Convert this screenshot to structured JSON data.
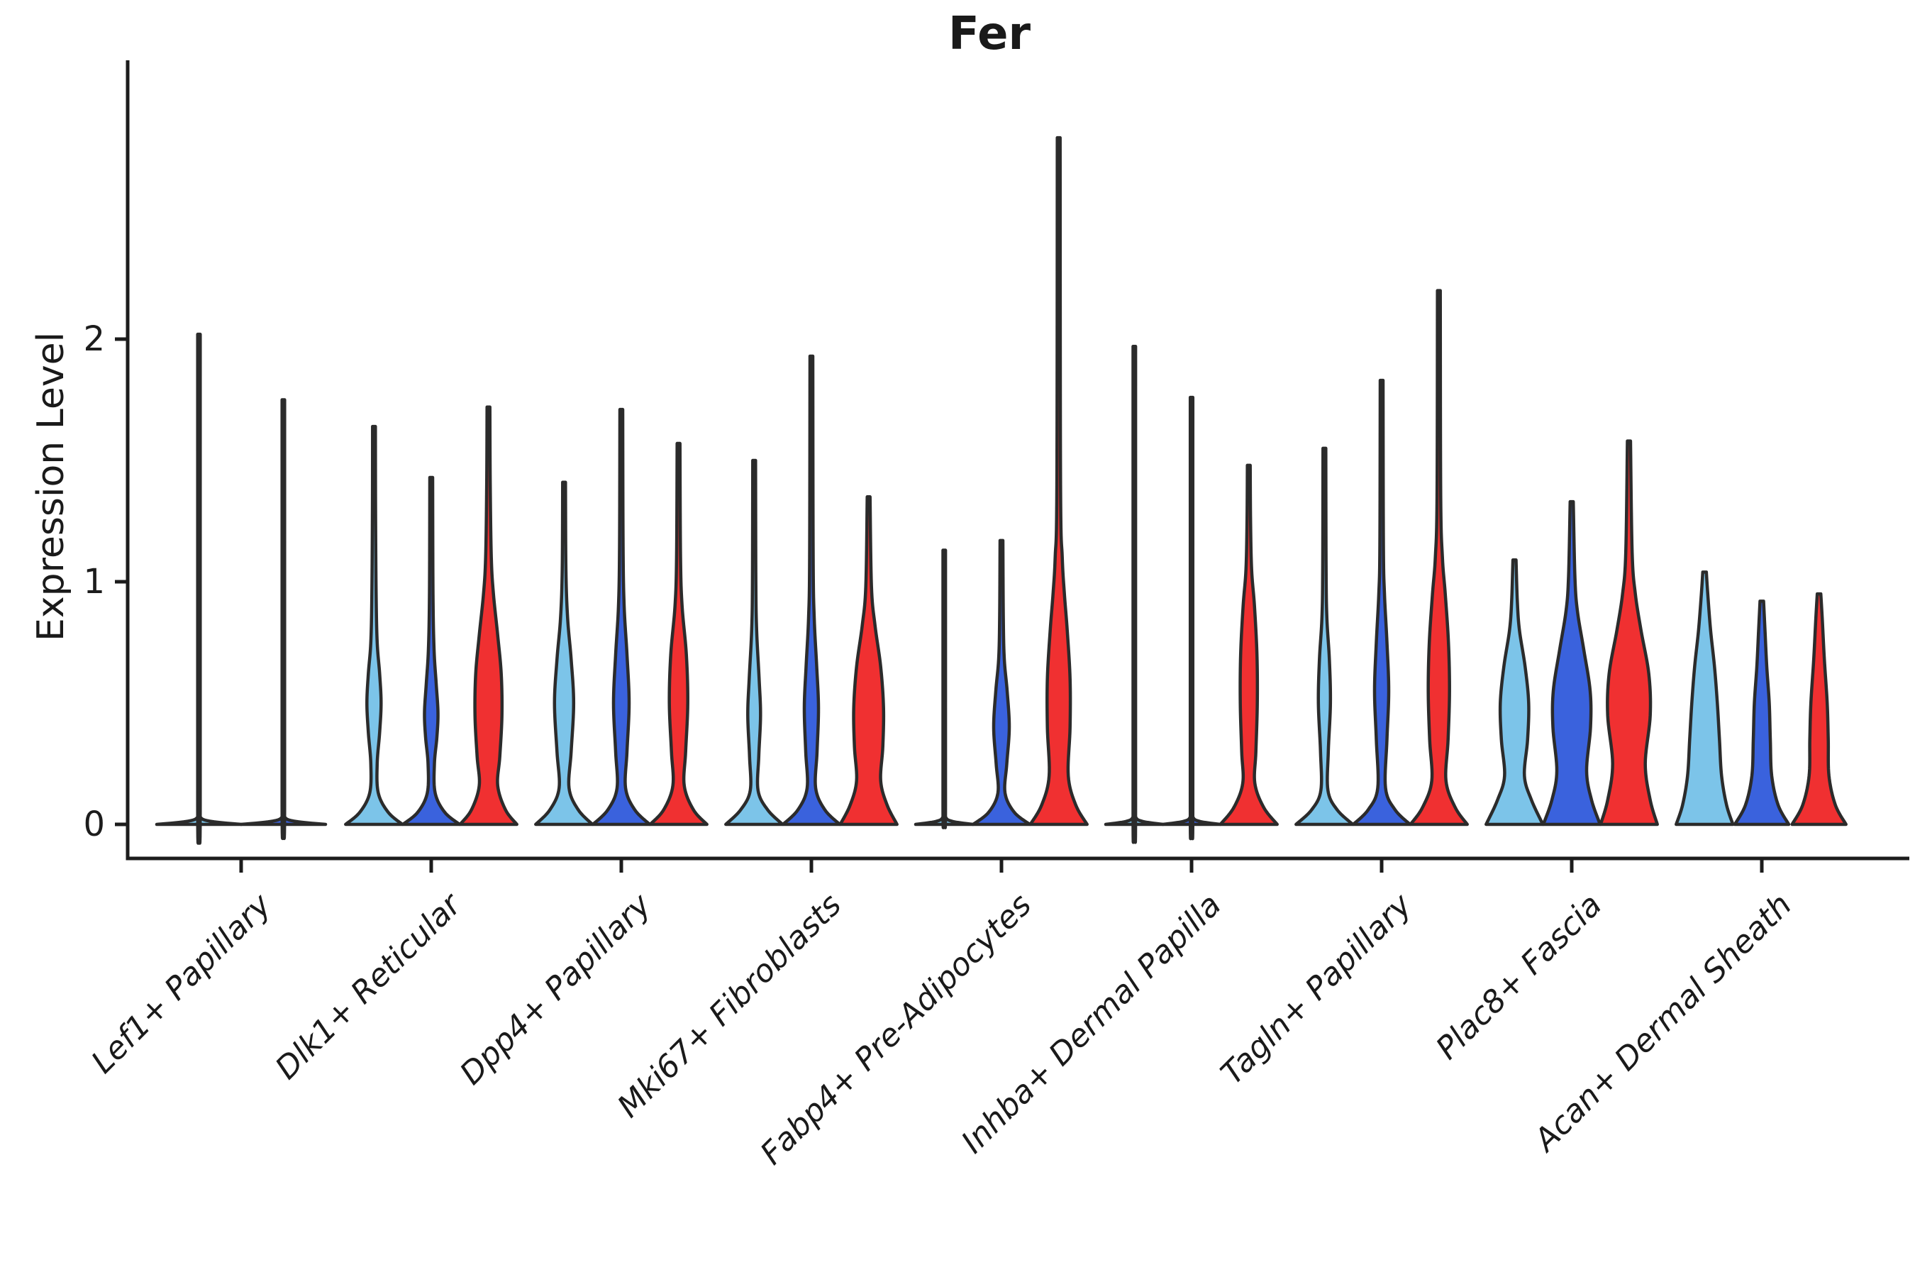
{
  "title": "Fer",
  "axes": {
    "ylabel": "Expression Level",
    "yticks": [
      0,
      1,
      2
    ],
    "ylim": [
      0,
      2.9
    ],
    "grid": false,
    "legend": "none"
  },
  "colors": {
    "lightblue": "#7CC4E9",
    "darkblue": "#3A62DD",
    "red": "#F03031",
    "outline": "#2B2B2B",
    "axis": "#1C1C1C"
  },
  "chart_data": {
    "type": "violin",
    "title": "Fer",
    "ylabel": "Expression Level",
    "categories": [
      "Lef1+ Papillary",
      "Dlk1+ Reticular",
      "Dpp4+ Papillary",
      "Mki67+ Fibroblasts",
      "Fabp4+ Pre-Adipocytes",
      "Inhba+ Dermal Papilla",
      "Tagln+ Papillary",
      "Plac8+ Fascia",
      "Acan+ Dermal Sheath"
    ],
    "profile_units": "[expression_value, half_width_px]",
    "groups": [
      {
        "label": "Lef1+ Papillary",
        "violins": [
          {
            "color": "lightblue",
            "max": 2.02,
            "flat": true
          },
          {
            "color": "darkblue",
            "max": 1.75,
            "flat": true
          }
        ]
      },
      {
        "label": "Dlk1+ Reticular",
        "violins": [
          {
            "color": "lightblue",
            "max": 1.64,
            "flat": false,
            "profile": [
              [
                0,
                40
              ],
              [
                0.05,
                20
              ],
              [
                0.13,
                6
              ],
              [
                0.25,
                4.5
              ],
              [
                0.38,
                8
              ],
              [
                0.5,
                10
              ],
              [
                0.62,
                8
              ],
              [
                0.75,
                4.5
              ],
              [
                0.95,
                3
              ],
              [
                1.3,
                2.2
              ],
              [
                1.64,
                2
              ]
            ]
          },
          {
            "color": "darkblue",
            "max": 1.43,
            "flat": false,
            "profile": [
              [
                0,
                40
              ],
              [
                0.05,
                19
              ],
              [
                0.13,
                5.5
              ],
              [
                0.25,
                4.5
              ],
              [
                0.36,
                8
              ],
              [
                0.46,
                9.5
              ],
              [
                0.58,
                7
              ],
              [
                0.72,
                4
              ],
              [
                0.95,
                2.5
              ],
              [
                1.43,
                2
              ]
            ]
          },
          {
            "color": "red",
            "max": 1.72,
            "flat": false,
            "profile": [
              [
                0,
                40
              ],
              [
                0.06,
                24
              ],
              [
                0.16,
                13
              ],
              [
                0.28,
                16
              ],
              [
                0.45,
                19
              ],
              [
                0.62,
                18
              ],
              [
                0.78,
                13
              ],
              [
                0.95,
                7
              ],
              [
                1.1,
                4
              ],
              [
                1.4,
                2.5
              ],
              [
                1.72,
                2
              ]
            ]
          }
        ]
      },
      {
        "label": "Dpp4+ Papillary",
        "violins": [
          {
            "color": "lightblue",
            "max": 1.41,
            "flat": false,
            "profile": [
              [
                0,
                40
              ],
              [
                0.06,
                20
              ],
              [
                0.15,
                7
              ],
              [
                0.3,
                10
              ],
              [
                0.5,
                13.5
              ],
              [
                0.68,
                10
              ],
              [
                0.85,
                5
              ],
              [
                1.05,
                2.6
              ],
              [
                1.41,
                2
              ]
            ]
          },
          {
            "color": "darkblue",
            "max": 1.71,
            "flat": false,
            "profile": [
              [
                0,
                40
              ],
              [
                0.06,
                19
              ],
              [
                0.15,
                6
              ],
              [
                0.3,
                8
              ],
              [
                0.5,
                11
              ],
              [
                0.7,
                8
              ],
              [
                0.9,
                4
              ],
              [
                1.15,
                2.5
              ],
              [
                1.71,
                2
              ]
            ]
          },
          {
            "color": "red",
            "max": 1.57,
            "flat": false,
            "profile": [
              [
                0,
                40
              ],
              [
                0.06,
                21
              ],
              [
                0.16,
                8
              ],
              [
                0.3,
                10
              ],
              [
                0.5,
                13
              ],
              [
                0.7,
                11
              ],
              [
                0.9,
                5
              ],
              [
                1.1,
                2.8
              ],
              [
                1.57,
                2
              ]
            ]
          }
        ]
      },
      {
        "label": "Mki67+ Fibroblasts",
        "violins": [
          {
            "color": "lightblue",
            "max": 1.5,
            "flat": false,
            "profile": [
              [
                0,
                40
              ],
              [
                0.06,
                19
              ],
              [
                0.14,
                5.5
              ],
              [
                0.28,
                6.5
              ],
              [
                0.45,
                9
              ],
              [
                0.6,
                7
              ],
              [
                0.8,
                3.5
              ],
              [
                1.0,
                2.4
              ],
              [
                1.5,
                2
              ]
            ]
          },
          {
            "color": "darkblue",
            "max": 1.93,
            "flat": false,
            "profile": [
              [
                0,
                40
              ],
              [
                0.06,
                19
              ],
              [
                0.15,
                6
              ],
              [
                0.3,
                8
              ],
              [
                0.48,
                10
              ],
              [
                0.65,
                7.5
              ],
              [
                0.85,
                4
              ],
              [
                1.1,
                2.5
              ],
              [
                1.93,
                2
              ]
            ]
          },
          {
            "color": "red",
            "max": 1.35,
            "flat": false,
            "profile": [
              [
                0,
                40
              ],
              [
                0.08,
                26
              ],
              [
                0.18,
                17
              ],
              [
                0.32,
                20
              ],
              [
                0.48,
                21
              ],
              [
                0.65,
                17
              ],
              [
                0.82,
                9
              ],
              [
                0.98,
                4
              ],
              [
                1.35,
                2
              ]
            ]
          }
        ]
      },
      {
        "label": "Fabp4+ Pre-Adipocytes",
        "violins": [
          {
            "color": "lightblue",
            "max": 1.13,
            "flat": true
          },
          {
            "color": "darkblue",
            "max": 1.17,
            "flat": false,
            "profile": [
              [
                0,
                40
              ],
              [
                0.05,
                18
              ],
              [
                0.13,
                5
              ],
              [
                0.25,
                7.5
              ],
              [
                0.4,
                11
              ],
              [
                0.55,
                8
              ],
              [
                0.68,
                4
              ],
              [
                0.85,
                2.6
              ],
              [
                1.17,
                2
              ]
            ]
          },
          {
            "color": "red",
            "max": 2.83,
            "flat": false,
            "profile": [
              [
                0,
                40
              ],
              [
                0.08,
                24
              ],
              [
                0.2,
                13.5
              ],
              [
                0.4,
                16
              ],
              [
                0.6,
                16
              ],
              [
                0.8,
                12
              ],
              [
                0.95,
                8
              ],
              [
                1.1,
                5
              ],
              [
                1.4,
                2.6
              ],
              [
                2.83,
                2
              ]
            ]
          }
        ]
      },
      {
        "label": "Inhba+ Dermal Papilla",
        "violins": [
          {
            "color": "lightblue",
            "max": 1.97,
            "flat": true
          },
          {
            "color": "darkblue",
            "max": 1.76,
            "flat": true
          },
          {
            "color": "red",
            "max": 1.48,
            "flat": false,
            "profile": [
              [
                0,
                40
              ],
              [
                0.07,
                21
              ],
              [
                0.17,
                8.5
              ],
              [
                0.3,
                10
              ],
              [
                0.5,
                12
              ],
              [
                0.7,
                11.5
              ],
              [
                0.9,
                8
              ],
              [
                1.05,
                4
              ],
              [
                1.25,
                2.5
              ],
              [
                1.48,
                2
              ]
            ]
          }
        ]
      },
      {
        "label": "Tagln+ Papillary",
        "violins": [
          {
            "color": "lightblue",
            "max": 1.55,
            "flat": false,
            "profile": [
              [
                0,
                40
              ],
              [
                0.06,
                18
              ],
              [
                0.14,
                5
              ],
              [
                0.3,
                5.5
              ],
              [
                0.5,
                8.5
              ],
              [
                0.68,
                7
              ],
              [
                0.85,
                3.5
              ],
              [
                1.05,
                2.4
              ],
              [
                1.55,
                2
              ]
            ]
          },
          {
            "color": "darkblue",
            "max": 1.83,
            "flat": false,
            "profile": [
              [
                0,
                40
              ],
              [
                0.06,
                19
              ],
              [
                0.15,
                5.5
              ],
              [
                0.35,
                7.5
              ],
              [
                0.55,
                10
              ],
              [
                0.75,
                7.5
              ],
              [
                0.95,
                4
              ],
              [
                1.15,
                2.5
              ],
              [
                1.83,
                2
              ]
            ]
          },
          {
            "color": "red",
            "max": 2.2,
            "flat": false,
            "profile": [
              [
                0,
                40
              ],
              [
                0.07,
                23
              ],
              [
                0.18,
                10
              ],
              [
                0.35,
                13
              ],
              [
                0.55,
                15
              ],
              [
                0.75,
                13.5
              ],
              [
                0.95,
                9
              ],
              [
                1.1,
                5
              ],
              [
                1.35,
                2.6
              ],
              [
                2.2,
                2
              ]
            ]
          }
        ]
      },
      {
        "label": "Plac8+ Fascia",
        "violins": [
          {
            "color": "lightblue",
            "max": 1.09,
            "flat": false,
            "profile": [
              [
                0,
                40
              ],
              [
                0.1,
                24
              ],
              [
                0.2,
                14
              ],
              [
                0.35,
                18.5
              ],
              [
                0.5,
                20
              ],
              [
                0.65,
                15
              ],
              [
                0.8,
                7
              ],
              [
                0.92,
                4
              ],
              [
                1.09,
                2.2
              ]
            ]
          },
          {
            "color": "darkblue",
            "max": 1.33,
            "flat": false,
            "profile": [
              [
                0,
                40
              ],
              [
                0.1,
                28
              ],
              [
                0.22,
                21
              ],
              [
                0.4,
                26.5
              ],
              [
                0.55,
                26
              ],
              [
                0.72,
                17
              ],
              [
                0.88,
                8
              ],
              [
                1.02,
                4.5
              ],
              [
                1.33,
                2.2
              ]
            ]
          },
          {
            "color": "red",
            "max": 1.58,
            "flat": false,
            "profile": [
              [
                0,
                40
              ],
              [
                0.1,
                30
              ],
              [
                0.25,
                23
              ],
              [
                0.45,
                30
              ],
              [
                0.62,
                28
              ],
              [
                0.8,
                17
              ],
              [
                0.95,
                9
              ],
              [
                1.12,
                4.5
              ],
              [
                1.58,
                2.2
              ]
            ]
          }
        ]
      },
      {
        "label": "Acan+ Dermal Sheath",
        "violins": [
          {
            "color": "lightblue",
            "max": 1.04,
            "flat": false,
            "profile": [
              [
                0,
                40
              ],
              [
                0.08,
                31
              ],
              [
                0.2,
                24
              ],
              [
                0.35,
                21
              ],
              [
                0.5,
                18
              ],
              [
                0.65,
                14
              ],
              [
                0.8,
                8.5
              ],
              [
                0.95,
                4.5
              ],
              [
                1.04,
                2.5
              ]
            ]
          },
          {
            "color": "darkblue",
            "max": 0.92,
            "flat": false,
            "profile": [
              [
                0,
                38
              ],
              [
                0.08,
                23
              ],
              [
                0.2,
                14
              ],
              [
                0.35,
                12
              ],
              [
                0.5,
                10.5
              ],
              [
                0.65,
                7
              ],
              [
                0.8,
                4.5
              ],
              [
                0.92,
                2.5
              ]
            ]
          },
          {
            "color": "red",
            "max": 0.95,
            "flat": false,
            "profile": [
              [
                0,
                38
              ],
              [
                0.08,
                23
              ],
              [
                0.2,
                14
              ],
              [
                0.35,
                13
              ],
              [
                0.5,
                11.5
              ],
              [
                0.68,
                7.5
              ],
              [
                0.85,
                4.5
              ],
              [
                0.95,
                2.5
              ]
            ]
          }
        ]
      }
    ]
  }
}
